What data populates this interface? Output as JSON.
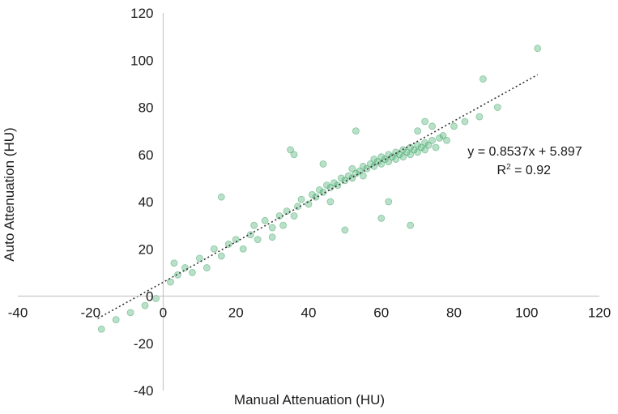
{
  "chart_data": {
    "type": "scatter",
    "xlabel": "Manual Attenuation (HU)",
    "ylabel": "Auto Attenuation (HU)",
    "xlim": [
      -40,
      120
    ],
    "ylim": [
      -40,
      120
    ],
    "x_ticks": [
      "-40",
      "-20",
      "0",
      "20",
      "40",
      "60",
      "80",
      "100",
      "120"
    ],
    "y_ticks": [
      "120",
      "100",
      "80",
      "60",
      "40",
      "20",
      "0",
      "-20",
      "-40"
    ],
    "grid": false,
    "point_color": "#3aa565",
    "series": [
      {
        "points": [
          [
            -17,
            -14
          ],
          [
            -13,
            -10
          ],
          [
            -9,
            -7
          ],
          [
            -5,
            -4
          ],
          [
            -2,
            -1
          ],
          [
            2,
            6
          ],
          [
            3,
            14
          ],
          [
            4,
            9
          ],
          [
            6,
            12
          ],
          [
            8,
            10
          ],
          [
            10,
            16
          ],
          [
            12,
            12
          ],
          [
            14,
            20
          ],
          [
            16,
            17
          ],
          [
            18,
            22
          ],
          [
            20,
            24
          ],
          [
            22,
            20
          ],
          [
            24,
            26
          ],
          [
            25,
            30
          ],
          [
            26,
            24
          ],
          [
            28,
            32
          ],
          [
            30,
            29
          ],
          [
            32,
            34
          ],
          [
            33,
            30
          ],
          [
            34,
            36
          ],
          [
            36,
            34
          ],
          [
            37,
            38
          ],
          [
            38,
            41
          ],
          [
            40,
            39
          ],
          [
            41,
            43
          ],
          [
            42,
            42
          ],
          [
            43,
            45
          ],
          [
            44,
            44
          ],
          [
            45,
            47
          ],
          [
            46,
            46
          ],
          [
            47,
            48
          ],
          [
            48,
            47
          ],
          [
            49,
            50
          ],
          [
            50,
            49
          ],
          [
            51,
            51
          ],
          [
            52,
            50
          ],
          [
            52,
            54
          ],
          [
            53,
            52
          ],
          [
            54,
            53
          ],
          [
            55,
            55
          ],
          [
            55,
            51
          ],
          [
            56,
            54
          ],
          [
            57,
            56
          ],
          [
            58,
            55
          ],
          [
            58,
            58
          ],
          [
            59,
            57
          ],
          [
            60,
            56
          ],
          [
            60,
            59
          ],
          [
            61,
            58
          ],
          [
            62,
            60
          ],
          [
            62,
            57
          ],
          [
            63,
            59
          ],
          [
            64,
            61
          ],
          [
            64,
            58
          ],
          [
            65,
            60
          ],
          [
            66,
            62
          ],
          [
            66,
            59
          ],
          [
            67,
            61
          ],
          [
            68,
            63
          ],
          [
            68,
            60
          ],
          [
            69,
            62
          ],
          [
            70,
            64
          ],
          [
            70,
            61
          ],
          [
            71,
            63
          ],
          [
            72,
            65
          ],
          [
            72,
            62
          ],
          [
            73,
            64
          ],
          [
            74,
            66
          ],
          [
            75,
            63
          ],
          [
            76,
            67
          ],
          [
            77,
            68
          ],
          [
            78,
            66
          ],
          [
            80,
            72
          ],
          [
            83,
            74
          ],
          [
            87,
            76
          ],
          [
            92,
            80
          ],
          [
            35,
            62
          ],
          [
            36,
            60
          ],
          [
            53,
            70
          ],
          [
            60,
            33
          ],
          [
            62,
            40
          ],
          [
            68,
            30
          ],
          [
            50,
            28
          ],
          [
            16,
            42
          ],
          [
            30,
            25
          ],
          [
            44,
            56
          ],
          [
            46,
            40
          ],
          [
            70,
            70
          ],
          [
            72,
            74
          ],
          [
            74,
            72
          ],
          [
            88,
            92
          ],
          [
            103,
            105
          ]
        ]
      }
    ],
    "trendline": {
      "slope": 0.8537,
      "intercept": 5.897,
      "x_range": [
        -18,
        103
      ],
      "style": "dotted"
    },
    "annotations": {
      "equation": "y = 0.8537x + 5.897",
      "r2_label": "R",
      "r2_sup": "2",
      "r2_value": " = 0.92"
    }
  }
}
